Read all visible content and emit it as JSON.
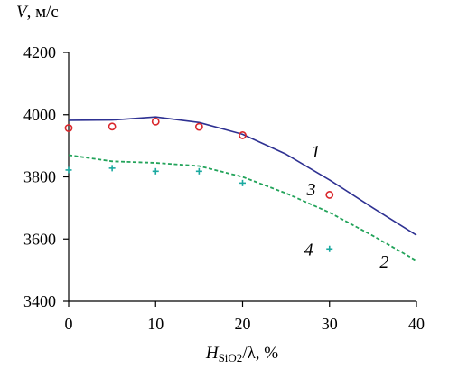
{
  "chart_data": {
    "type": "line",
    "ylabel_symbol": "V",
    "ylabel_unit": ", м/с",
    "xlabel_symbol": "H",
    "xlabel_subscript": "SiO2",
    "xlabel_rest": "/λ, %",
    "x_ticks": [
      0,
      10,
      20,
      30,
      40
    ],
    "y_ticks": [
      3400,
      3600,
      3800,
      4000,
      4200
    ],
    "xlim": [
      0,
      40
    ],
    "ylim": [
      3400,
      4200
    ],
    "grid": false,
    "series": [
      {
        "id": "1",
        "style": "solid",
        "color": "#2e3192",
        "x": [
          0,
          5,
          10,
          15,
          20,
          25,
          30,
          35,
          40
        ],
        "y": [
          3982,
          3983,
          3993,
          3975,
          3937,
          3873,
          3790,
          3700,
          3612
        ]
      },
      {
        "id": "2",
        "style": "dashed",
        "color": "#22a35a",
        "x": [
          0,
          5,
          10,
          15,
          20,
          25,
          30,
          35,
          40
        ],
        "y": [
          3870,
          3850,
          3845,
          3835,
          3800,
          3747,
          3685,
          3610,
          3530
        ]
      },
      {
        "id": "3",
        "style": "circle",
        "color": "#d9262b",
        "x": [
          0,
          5,
          10,
          15,
          20,
          30
        ],
        "y": [
          3957,
          3962,
          3978,
          3961,
          3934,
          3742
        ]
      },
      {
        "id": "4",
        "style": "plus",
        "color": "#1ba9a0",
        "x": [
          0,
          5,
          10,
          15,
          20,
          30
        ],
        "y": [
          3822,
          3828,
          3818,
          3818,
          3780,
          3568
        ]
      }
    ],
    "curve_labels": [
      {
        "text": "1",
        "x": 28.4,
        "y": 3863
      },
      {
        "text": "2",
        "x": 36.3,
        "y": 3508
      },
      {
        "text": "3",
        "x": 27.9,
        "y": 3740
      },
      {
        "text": "4",
        "x": 27.6,
        "y": 3547
      }
    ]
  }
}
